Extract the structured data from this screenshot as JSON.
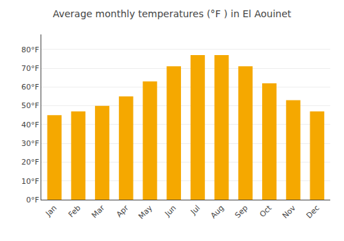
{
  "chart_data": {
    "type": "bar",
    "title": "Average monthly temperatures (°F ) in El Aouinet",
    "categories": [
      "Jan",
      "Feb",
      "Mar",
      "Apr",
      "May",
      "Jun",
      "Jul",
      "Aug",
      "Sep",
      "Oct",
      "Nov",
      "Dec"
    ],
    "values": [
      45,
      47,
      50,
      55,
      63,
      71,
      77,
      77,
      71,
      62,
      53,
      47
    ],
    "color": "#F5A800",
    "ylim": [
      0,
      88
    ],
    "yticks": [
      {
        "value": 0,
        "label": "0°F"
      },
      {
        "value": 10,
        "label": "10°F"
      },
      {
        "value": 20,
        "label": "20°F"
      },
      {
        "value": 30,
        "label": "30°F"
      },
      {
        "value": 40,
        "label": "40°F"
      },
      {
        "value": 50,
        "label": "50°F"
      },
      {
        "value": 60,
        "label": "60°F"
      },
      {
        "value": 70,
        "label": "70°F"
      },
      {
        "value": 80,
        "label": "80°F"
      }
    ],
    "grid": true
  }
}
